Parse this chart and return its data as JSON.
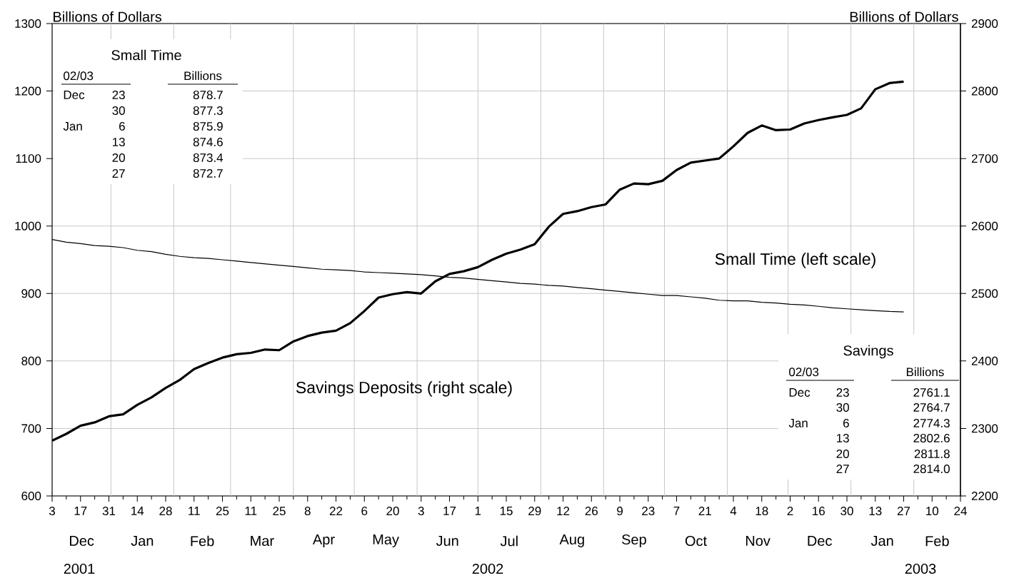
{
  "chart_data": {
    "type": "line",
    "x": [
      "2001-12-03",
      "2001-12-10",
      "2001-12-17",
      "2001-12-24",
      "2001-12-31",
      "2002-01-07",
      "2002-01-14",
      "2002-01-21",
      "2002-01-28",
      "2002-02-04",
      "2002-02-11",
      "2002-02-18",
      "2002-02-25",
      "2002-03-04",
      "2002-03-11",
      "2002-03-18",
      "2002-03-25",
      "2002-04-01",
      "2002-04-08",
      "2002-04-15",
      "2002-04-22",
      "2002-04-29",
      "2002-05-06",
      "2002-05-13",
      "2002-05-20",
      "2002-05-27",
      "2002-06-03",
      "2002-06-10",
      "2002-06-17",
      "2002-06-24",
      "2002-07-01",
      "2002-07-08",
      "2002-07-15",
      "2002-07-22",
      "2002-07-29",
      "2002-08-05",
      "2002-08-12",
      "2002-08-19",
      "2002-08-26",
      "2002-09-02",
      "2002-09-09",
      "2002-09-16",
      "2002-09-23",
      "2002-09-30",
      "2002-10-07",
      "2002-10-14",
      "2002-10-21",
      "2002-10-28",
      "2002-11-04",
      "2002-11-11",
      "2002-11-18",
      "2002-11-25",
      "2002-12-02",
      "2002-12-09",
      "2002-12-16",
      "2002-12-23",
      "2002-12-30",
      "2003-01-06",
      "2003-01-13",
      "2003-01-20",
      "2003-01-27"
    ],
    "series": [
      {
        "name": "Savings Deposits (right scale)",
        "color": "#000000",
        "axis": "y2",
        "values": [
          2282,
          2292,
          2304,
          2309,
          2318,
          2321,
          2335,
          2346,
          2360,
          2372,
          2388,
          2397,
          2405,
          2410,
          2412,
          2417,
          2416,
          2429,
          2437,
          2442,
          2445,
          2456,
          2474,
          2494,
          2499,
          2502,
          2500,
          2518,
          2529,
          2533,
          2539,
          2550,
          2559,
          2565,
          2573,
          2599,
          2618,
          2622,
          2628,
          2632,
          2654,
          2663,
          2662,
          2667,
          2683,
          2694,
          2697,
          2700,
          2718,
          2738,
          2749,
          2742,
          2743,
          2752,
          2757,
          2761.1,
          2764.7,
          2774.3,
          2802.6,
          2811.8,
          2814.0
        ]
      },
      {
        "name": "Small Time (left scale)",
        "color": "#000000",
        "values": [
          980,
          976,
          974,
          971,
          970,
          968,
          964,
          962,
          958,
          955,
          953,
          952,
          950,
          948,
          946,
          944,
          942,
          940,
          938,
          936,
          935,
          934,
          932,
          931,
          930,
          929,
          928,
          926,
          924,
          923,
          921,
          919,
          917,
          915,
          914,
          912,
          911,
          909,
          907,
          905,
          903,
          901,
          899,
          897,
          897,
          895,
          893,
          890,
          889,
          889,
          887,
          886,
          884,
          883,
          881,
          878.7,
          877.3,
          875.9,
          874.6,
          873.4,
          872.7
        ]
      }
    ],
    "ylabel": "Billions of Dollars",
    "y2label": "Billions of Dollars",
    "xlim": [
      "2001-12-03",
      "2003-02-24"
    ],
    "xticks": [
      {
        "value": "2001-12-03",
        "label": "3"
      },
      {
        "value": "2001-12-10",
        "label": null
      },
      {
        "value": "2001-12-17",
        "label": "17"
      },
      {
        "value": "2001-12-24",
        "label": null
      },
      {
        "value": "2001-12-31",
        "label": "31"
      },
      {
        "value": "2002-01-07",
        "label": null
      },
      {
        "value": "2002-01-14",
        "label": "14"
      },
      {
        "value": "2002-01-21",
        "label": null
      },
      {
        "value": "2002-01-28",
        "label": "28"
      },
      {
        "value": "2002-02-04",
        "label": null
      },
      {
        "value": "2002-02-11",
        "label": "11"
      },
      {
        "value": "2002-02-18",
        "label": null
      },
      {
        "value": "2002-02-25",
        "label": "25"
      },
      {
        "value": "2002-03-04",
        "label": null
      },
      {
        "value": "2002-03-11",
        "label": "11"
      },
      {
        "value": "2002-03-18",
        "label": null
      },
      {
        "value": "2002-03-25",
        "label": "25"
      },
      {
        "value": "2002-04-01",
        "label": null
      },
      {
        "value": "2002-04-08",
        "label": "8"
      },
      {
        "value": "2002-04-15",
        "label": null
      },
      {
        "value": "2002-04-22",
        "label": "22"
      },
      {
        "value": "2002-04-29",
        "label": null
      },
      {
        "value": "2002-05-06",
        "label": "6"
      },
      {
        "value": "2002-05-13",
        "label": null
      },
      {
        "value": "2002-05-20",
        "label": "20"
      },
      {
        "value": "2002-05-27",
        "label": null
      },
      {
        "value": "2002-06-03",
        "label": "3"
      },
      {
        "value": "2002-06-10",
        "label": null
      },
      {
        "value": "2002-06-17",
        "label": "17"
      },
      {
        "value": "2002-06-24",
        "label": null
      },
      {
        "value": "2002-07-01",
        "label": "1"
      },
      {
        "value": "2002-07-08",
        "label": null
      },
      {
        "value": "2002-07-15",
        "label": "15"
      },
      {
        "value": "2002-07-22",
        "label": null
      },
      {
        "value": "2002-07-29",
        "label": "29"
      },
      {
        "value": "2002-08-05",
        "label": null
      },
      {
        "value": "2002-08-12",
        "label": "12"
      },
      {
        "value": "2002-08-19",
        "label": null
      },
      {
        "value": "2002-08-26",
        "label": "26"
      },
      {
        "value": "2002-09-02",
        "label": null
      },
      {
        "value": "2002-09-09",
        "label": "9"
      },
      {
        "value": "2002-09-16",
        "label": null
      },
      {
        "value": "2002-09-23",
        "label": "23"
      },
      {
        "value": "2002-09-30",
        "label": null
      },
      {
        "value": "2002-10-07",
        "label": "7"
      },
      {
        "value": "2002-10-14",
        "label": null
      },
      {
        "value": "2002-10-21",
        "label": "21"
      },
      {
        "value": "2002-10-28",
        "label": null
      },
      {
        "value": "2002-11-04",
        "label": "4"
      },
      {
        "value": "2002-11-11",
        "label": null
      },
      {
        "value": "2002-11-18",
        "label": "18"
      },
      {
        "value": "2002-11-25",
        "label": null
      },
      {
        "value": "2002-12-02",
        "label": "2"
      },
      {
        "value": "2002-12-09",
        "label": null
      },
      {
        "value": "2002-12-16",
        "label": "16"
      },
      {
        "value": "2002-12-23",
        "label": null
      },
      {
        "value": "2002-12-30",
        "label": "30"
      },
      {
        "value": "2003-01-06",
        "label": null
      },
      {
        "value": "2003-01-13",
        "label": "13"
      },
      {
        "value": "2003-01-20",
        "label": null
      },
      {
        "value": "2003-01-27",
        "label": "27"
      },
      {
        "value": "2003-02-03",
        "label": null
      },
      {
        "value": "2003-02-10",
        "label": "10"
      },
      {
        "value": "2003-02-17",
        "label": null
      },
      {
        "value": "2003-02-24",
        "label": "24"
      }
    ],
    "ylim": [
      600,
      1300
    ],
    "yticks": [
      600,
      700,
      800,
      900,
      1000,
      1100,
      1200,
      1300
    ],
    "y2lim": [
      2200,
      2900
    ],
    "y2ticks": [
      2200,
      2300,
      2400,
      2500,
      2600,
      2700,
      2800,
      2900
    ],
    "grid": true,
    "annotations": [
      "Small Time",
      "02/03",
      "Billions",
      "Dec",
      "23",
      "878.7",
      "30",
      "877.3",
      "Jan",
      "6",
      "875.9",
      "13",
      "874.6",
      "20",
      "873.4",
      "27",
      "872.7",
      "Savings",
      "02/03",
      "Billions",
      "Dec",
      "23",
      "2761.1",
      "30",
      "2764.7",
      "Jan",
      "6",
      "2774.3",
      "13",
      "2802.6",
      "20",
      "2811.8",
      "27",
      "2814.0",
      "Dec",
      "Jan",
      "Feb",
      "Mar",
      "Apr",
      "May",
      "Jun",
      "Jul",
      "Aug",
      "Sep",
      "Oct",
      "Nov",
      "Dec",
      "Jan",
      "Feb",
      "2001",
      "2002",
      "2003"
    ]
  }
}
